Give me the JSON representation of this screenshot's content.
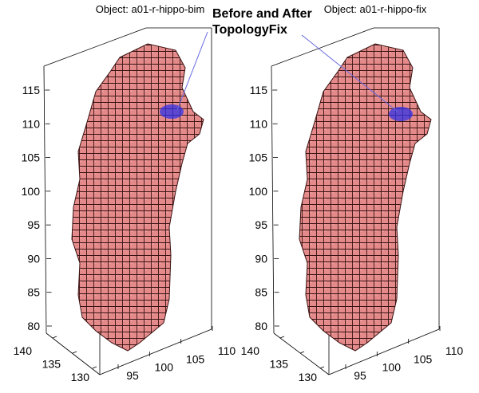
{
  "annotation": {
    "line1": "Before and After",
    "line2": "TopologyFix",
    "color": "#6a6ae0"
  },
  "colors": {
    "voxel_face": "#e58a8a",
    "voxel_edge": "#3a1212",
    "highlight": "#3030e6"
  },
  "chart_data": [
    {
      "type": "scatter3d",
      "title": "Object: a01-r-hippo-bim",
      "zticks": [
        "115",
        "110",
        "105",
        "100",
        "95",
        "90",
        "85",
        "80"
      ],
      "zticks_values": [
        115,
        110,
        105,
        100,
        95,
        90,
        85,
        80
      ],
      "xticks": [
        "95",
        "100",
        "105",
        "110"
      ],
      "xticks_values": [
        95,
        100,
        105,
        110
      ],
      "yticks": [
        "140",
        "135",
        "130"
      ],
      "yticks_values": [
        140,
        135,
        130
      ],
      "zlim": [
        78,
        120
      ],
      "highlight_region_z": 111,
      "grid": false
    },
    {
      "type": "scatter3d",
      "title": "Object: a01-r-hippo-fix",
      "zticks": [
        "115",
        "110",
        "105",
        "100",
        "95",
        "90",
        "85",
        "80"
      ],
      "zticks_values": [
        115,
        110,
        105,
        100,
        95,
        90,
        85,
        80
      ],
      "xticks": [
        "95",
        "100",
        "105",
        "110"
      ],
      "xticks_values": [
        95,
        100,
        105,
        110
      ],
      "yticks": [
        "140",
        "135",
        "130"
      ],
      "yticks_values": [
        140,
        135,
        130
      ],
      "zlim": [
        78,
        120
      ],
      "highlight_region_z": 111,
      "grid": false
    }
  ]
}
